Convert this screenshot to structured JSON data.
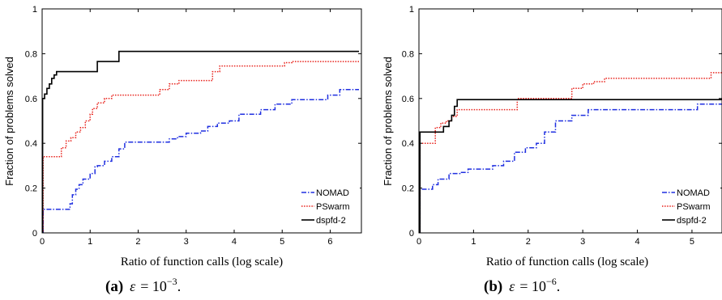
{
  "colors": {
    "NOMAD": "#1f2fe0",
    "PSwarm": "#e8221b",
    "dspfd-2": "#000000"
  },
  "chart_data": [
    {
      "type": "line",
      "ylabel": "Fraction of problems solved",
      "xlabel": "Ratio of function calls (log scale)",
      "caption": {
        "letter": "(a)",
        "eps": "ε",
        "eq": "= 10",
        "exp": "−3",
        "end": "."
      },
      "xlim": [
        0,
        6.65
      ],
      "ylim": [
        0,
        1
      ],
      "xticks": [
        0,
        1,
        2,
        3,
        4,
        5,
        6
      ],
      "yticks": [
        0,
        0.2,
        0.4,
        0.6,
        0.8,
        1
      ],
      "ytick_labels": [
        "0",
        "0.2",
        "0.4",
        "0.6",
        "0.8",
        "1"
      ],
      "legend_position": "bottom-right",
      "series": [
        {
          "name": "NOMAD",
          "style": "dashdot",
          "step": true,
          "x": [
            0,
            0.02,
            0.5,
            0.58,
            0.63,
            0.7,
            0.77,
            0.85,
            1.0,
            1.1,
            1.15,
            1.3,
            1.45,
            1.6,
            1.72,
            1.85,
            2.5,
            2.65,
            2.82,
            3.0,
            3.3,
            3.45,
            3.65,
            3.9,
            4.1,
            4.55,
            4.85,
            5.2,
            5.95,
            6.2,
            6.6
          ],
          "y": [
            0,
            0.105,
            0.105,
            0.13,
            0.17,
            0.195,
            0.215,
            0.24,
            0.265,
            0.295,
            0.3,
            0.32,
            0.34,
            0.375,
            0.405,
            0.405,
            0.405,
            0.42,
            0.43,
            0.445,
            0.455,
            0.475,
            0.49,
            0.5,
            0.53,
            0.55,
            0.575,
            0.595,
            0.615,
            0.64,
            0.64
          ]
        },
        {
          "name": "PSwarm",
          "style": "dotted",
          "step": true,
          "x": [
            0,
            0.02,
            0.3,
            0.4,
            0.5,
            0.6,
            0.7,
            0.8,
            0.9,
            1.0,
            1.05,
            1.15,
            1.3,
            1.45,
            2.2,
            2.45,
            2.65,
            2.85,
            3.55,
            3.7,
            3.9,
            5.05,
            5.2,
            6.6
          ],
          "y": [
            0,
            0.34,
            0.34,
            0.38,
            0.41,
            0.425,
            0.45,
            0.47,
            0.5,
            0.53,
            0.555,
            0.58,
            0.6,
            0.615,
            0.615,
            0.64,
            0.665,
            0.68,
            0.72,
            0.745,
            0.745,
            0.76,
            0.765,
            0.765
          ]
        },
        {
          "name": "dspfd-2",
          "style": "solid",
          "step": true,
          "x": [
            0,
            0.01,
            0.05,
            0.1,
            0.15,
            0.2,
            0.25,
            0.3,
            0.35,
            1.0,
            1.15,
            1.55,
            1.6,
            6.6
          ],
          "y": [
            0,
            0.6,
            0.62,
            0.645,
            0.665,
            0.69,
            0.705,
            0.72,
            0.72,
            0.72,
            0.765,
            0.765,
            0.81,
            0.81
          ]
        }
      ]
    },
    {
      "type": "line",
      "ylabel": "Fraction of problems solved",
      "xlabel": "Ratio of function calls (log scale)",
      "caption": {
        "letter": "(b)",
        "eps": "ε",
        "eq": "= 10",
        "exp": "−6",
        "end": "."
      },
      "xlim": [
        0,
        5.55
      ],
      "ylim": [
        0,
        1
      ],
      "xticks": [
        0,
        1,
        2,
        3,
        4,
        5
      ],
      "yticks": [
        0,
        0.2,
        0.4,
        0.6,
        0.8,
        1
      ],
      "ytick_labels": [
        "0",
        "0.2",
        "0.4",
        "0.6",
        "0.8",
        "1"
      ],
      "legend_position": "bottom-right",
      "series": [
        {
          "name": "NOMAD",
          "style": "dashdot",
          "step": true,
          "x": [
            0,
            0.02,
            0.25,
            0.35,
            0.55,
            0.75,
            0.9,
            1.35,
            1.55,
            1.75,
            1.95,
            2.15,
            2.3,
            2.5,
            2.8,
            3.1,
            3.5,
            5.1,
            5.55
          ],
          "y": [
            0,
            0.195,
            0.215,
            0.24,
            0.265,
            0.27,
            0.285,
            0.3,
            0.32,
            0.36,
            0.38,
            0.4,
            0.45,
            0.5,
            0.525,
            0.55,
            0.55,
            0.575,
            0.575
          ]
        },
        {
          "name": "PSwarm",
          "style": "dotted",
          "step": true,
          "x": [
            0,
            0.02,
            0.25,
            0.3,
            0.4,
            0.5,
            0.6,
            0.7,
            0.9,
            1.8,
            2.8,
            3.0,
            3.2,
            3.4,
            5.35,
            5.55
          ],
          "y": [
            0,
            0.4,
            0.4,
            0.47,
            0.49,
            0.5,
            0.52,
            0.55,
            0.55,
            0.6,
            0.645,
            0.665,
            0.675,
            0.69,
            0.715,
            0.715
          ]
        },
        {
          "name": "dspfd-2",
          "style": "solid",
          "step": true,
          "x": [
            0,
            0.02,
            0.35,
            0.45,
            0.55,
            0.6,
            0.65,
            0.7,
            1.0,
            5.55
          ],
          "y": [
            0,
            0.45,
            0.45,
            0.475,
            0.5,
            0.525,
            0.565,
            0.595,
            0.595,
            0.6
          ]
        }
      ]
    }
  ]
}
